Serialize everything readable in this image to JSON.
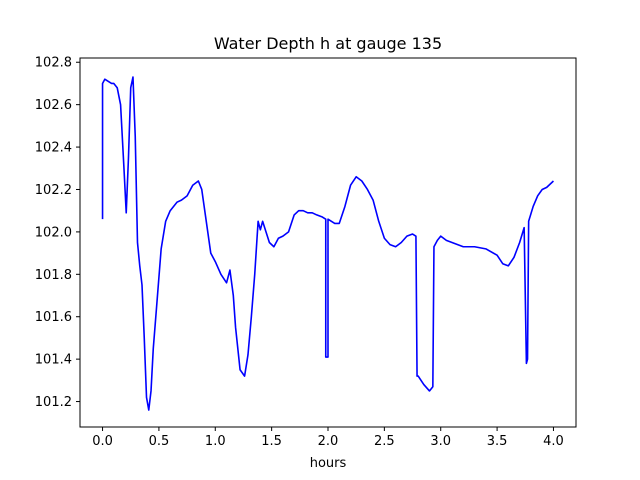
{
  "chart_data": {
    "type": "line",
    "title": "Water Depth h at gauge 135",
    "xlabel": "hours",
    "ylabel": "",
    "xlim": [
      -0.2,
      4.2
    ],
    "ylim": [
      101.08,
      102.82
    ],
    "xticks": [
      0.0,
      0.5,
      1.0,
      1.5,
      2.0,
      2.5,
      3.0,
      3.5,
      4.0
    ],
    "xtick_labels": [
      "0.0",
      "0.5",
      "1.0",
      "1.5",
      "2.0",
      "2.5",
      "3.0",
      "3.5",
      "4.0"
    ],
    "yticks": [
      101.2,
      101.4,
      101.6,
      101.8,
      102.0,
      102.2,
      102.4,
      102.6,
      102.8
    ],
    "ytick_labels": [
      "101.2",
      "101.4",
      "101.6",
      "101.8",
      "102.0",
      "102.2",
      "102.4",
      "102.6",
      "102.8"
    ],
    "grid": false,
    "legend": false,
    "series": [
      {
        "color": "#0000ff",
        "x": [
          0.0,
          0.0,
          0.02,
          0.05,
          0.08,
          0.1,
          0.13,
          0.16,
          0.19,
          0.21,
          0.23,
          0.25,
          0.27,
          0.29,
          0.31,
          0.33,
          0.35,
          0.37,
          0.39,
          0.41,
          0.43,
          0.45,
          0.48,
          0.52,
          0.56,
          0.6,
          0.63,
          0.66,
          0.7,
          0.75,
          0.8,
          0.85,
          0.88,
          0.92,
          0.96,
          1.0,
          1.05,
          1.1,
          1.13,
          1.16,
          1.18,
          1.22,
          1.26,
          1.29,
          1.32,
          1.35,
          1.38,
          1.4,
          1.42,
          1.45,
          1.48,
          1.52,
          1.56,
          1.6,
          1.65,
          1.7,
          1.74,
          1.78,
          1.82,
          1.86,
          1.9,
          1.95,
          1.98,
          1.98,
          2.0,
          2.0,
          2.03,
          2.06,
          2.1,
          2.15,
          2.2,
          2.25,
          2.3,
          2.35,
          2.4,
          2.45,
          2.5,
          2.55,
          2.6,
          2.65,
          2.7,
          2.75,
          2.78,
          2.79,
          2.8,
          2.85,
          2.9,
          2.93,
          2.94,
          2.97,
          3.0,
          3.05,
          3.1,
          3.2,
          3.3,
          3.4,
          3.5,
          3.55,
          3.6,
          3.65,
          3.7,
          3.74,
          3.76,
          3.77,
          3.78,
          3.82,
          3.86,
          3.9,
          3.94,
          3.98,
          4.0
        ],
        "y": [
          102.06,
          102.7,
          102.72,
          102.71,
          102.7,
          102.7,
          102.68,
          102.6,
          102.3,
          102.09,
          102.35,
          102.68,
          102.73,
          102.45,
          101.95,
          101.84,
          101.75,
          101.5,
          101.22,
          101.16,
          101.25,
          101.45,
          101.65,
          101.92,
          102.05,
          102.1,
          102.12,
          102.14,
          102.15,
          102.17,
          102.22,
          102.24,
          102.2,
          102.05,
          101.9,
          101.86,
          101.8,
          101.76,
          101.82,
          101.7,
          101.55,
          101.35,
          101.32,
          101.42,
          101.6,
          101.8,
          102.05,
          102.01,
          102.05,
          102.0,
          101.95,
          101.93,
          101.97,
          101.98,
          102.0,
          102.08,
          102.1,
          102.1,
          102.09,
          102.09,
          102.08,
          102.07,
          102.06,
          101.41,
          101.41,
          102.06,
          102.05,
          102.04,
          102.04,
          102.12,
          102.22,
          102.26,
          102.24,
          102.2,
          102.15,
          102.05,
          101.97,
          101.94,
          101.93,
          101.95,
          101.98,
          101.99,
          101.98,
          101.32,
          101.32,
          101.28,
          101.25,
          101.27,
          101.93,
          101.96,
          101.98,
          101.96,
          101.95,
          101.93,
          101.93,
          101.92,
          101.89,
          101.85,
          101.84,
          101.88,
          101.95,
          102.02,
          101.38,
          101.4,
          102.05,
          102.12,
          102.17,
          102.2,
          102.21,
          102.23,
          102.24
        ]
      }
    ]
  }
}
